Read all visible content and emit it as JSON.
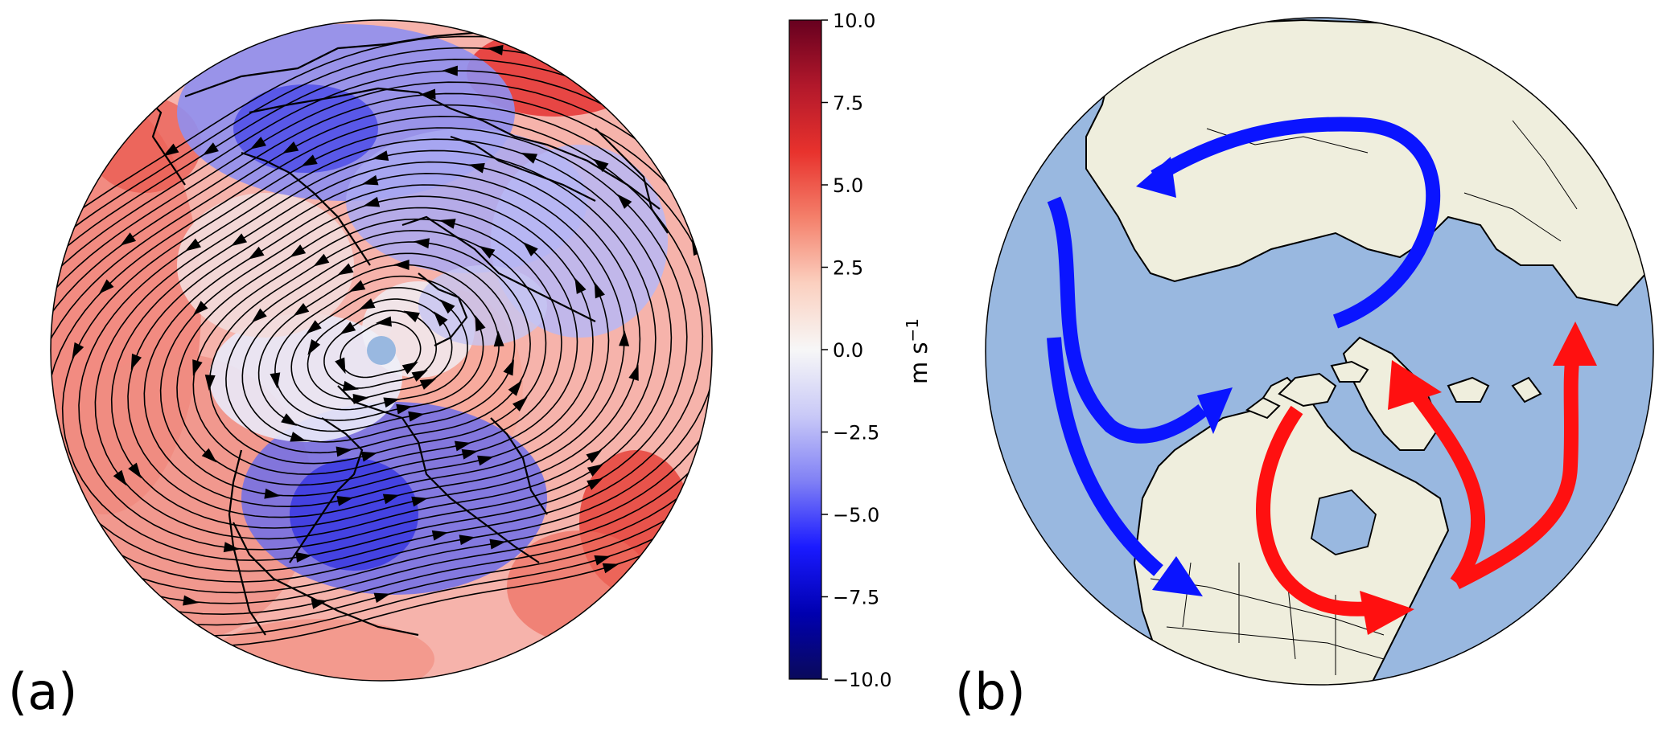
{
  "panels": {
    "a": {
      "label": "(a)"
    },
    "b": {
      "label": "(b)"
    }
  },
  "colorbar": {
    "ticks": [
      "10.0",
      "7.5",
      "5.0",
      "2.5",
      "0.0",
      "−2.5",
      "−5.0",
      "−7.5",
      "−10.0"
    ],
    "unit_main": "m s",
    "unit_exp": "−1",
    "colormap": [
      "#67001f",
      "#b2182b",
      "#e8322d",
      "#f4806b",
      "#fbd0c0",
      "#f7f7f7",
      "#c9c9f7",
      "#8080f5",
      "#1a1aff",
      "#0000b0",
      "#0a0a5a"
    ]
  },
  "colors": {
    "ocean": "#99b8e0",
    "land": "#efeedd",
    "cold_arrows": "#0a14ff",
    "warm_arrows": "#ff1010",
    "streamlines": "#000000",
    "coast": "#000000"
  }
}
